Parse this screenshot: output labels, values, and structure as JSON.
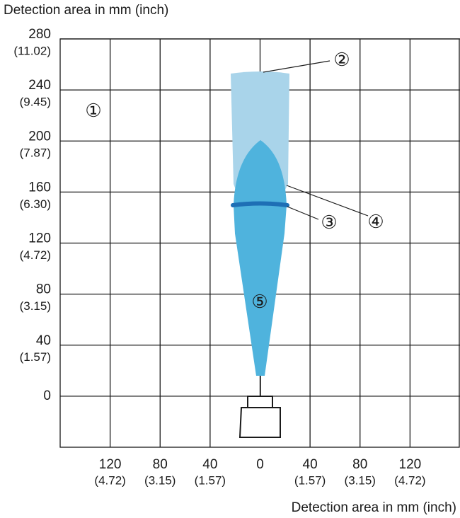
{
  "header": {
    "title": "Detection area in mm (inch)"
  },
  "footer": {
    "title": "Detection area in mm (inch)"
  },
  "chart_data": {
    "xlim": [
      -160,
      160
    ],
    "ylim": [
      -40,
      280
    ],
    "yticks": [
      {
        "value": 280,
        "label": "280",
        "sub": "(11.02)"
      },
      {
        "value": 240,
        "label": "240",
        "sub": "(9.45)"
      },
      {
        "value": 200,
        "label": "200",
        "sub": "(7.87)"
      },
      {
        "value": 160,
        "label": "160",
        "sub": "(6.30)"
      },
      {
        "value": 120,
        "label": "120",
        "sub": "(4.72)"
      },
      {
        "value": 80,
        "label": "80",
        "sub": "(3.15)"
      },
      {
        "value": 40,
        "label": "40",
        "sub": "(1.57)"
      },
      {
        "value": 0,
        "label": "0"
      }
    ],
    "xticks": [
      {
        "value": -120,
        "label": "120",
        "sub": "(4.72)"
      },
      {
        "value": -80,
        "label": "80",
        "sub": "(3.15)"
      },
      {
        "value": -40,
        "label": "40",
        "sub": "(1.57)"
      },
      {
        "value": 0,
        "label": "0"
      },
      {
        "value": 40,
        "label": "40",
        "sub": "(1.57)"
      },
      {
        "value": 80,
        "label": "80",
        "sub": "(3.15)"
      },
      {
        "value": 120,
        "label": "120",
        "sub": "(4.72)"
      }
    ]
  },
  "callouts": [
    "①",
    "②",
    "③",
    "④",
    "⑤"
  ]
}
